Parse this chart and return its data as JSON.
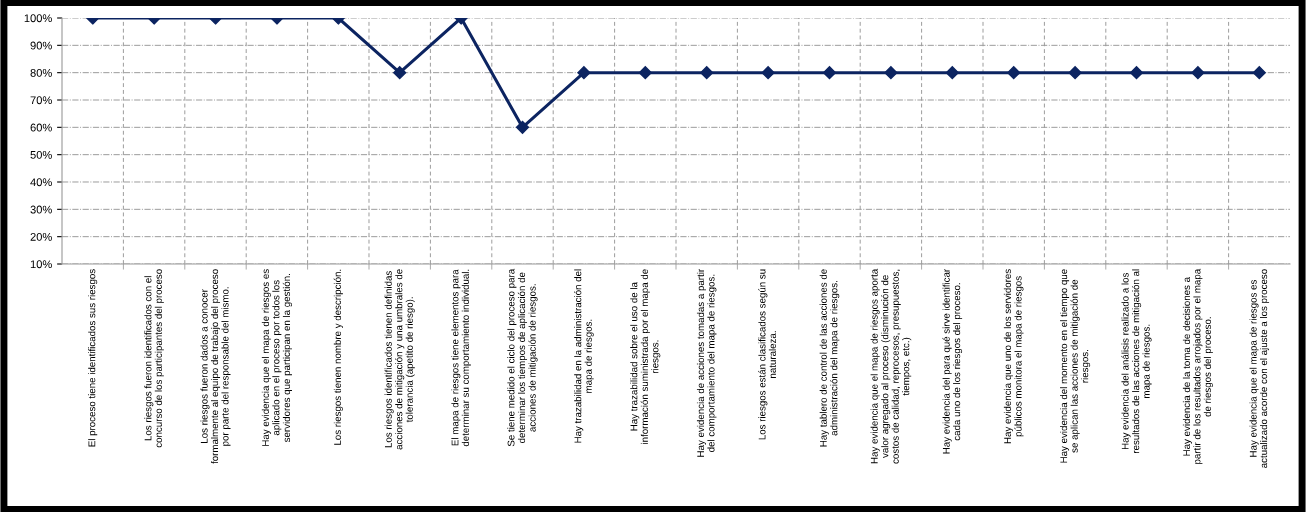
{
  "chart_data": {
    "type": "line",
    "categories": [
      "El proceso tiene identificados sus riesgos",
      "Los riesgos fueron identificados con el\nconcurso de los participantes del proceso",
      "Los riesgos fueron dados a conocer\nformalmente al equipo de trabajo del proceso\npor parte del responsable del mismo.",
      "Hay evidencia que el mapa de riesgos es\naplicado en el proceso por todos los\nservidores que participan en la gestión.",
      "Los riesgos tienen nombre y descripción.",
      "Los riesgos identificados tienen definidas\nacciones de mitigación y una umbrales de\ntolerancia (apetito de riesgo).",
      "El mapa de riesgos tiene elementos para\ndeterminar su comportamiento individual.",
      "Se tiene medido el ciclo del proceso para\ndeterminar los tiempos de aplicación de\nacciones de mitigación de riesgos.",
      "Hay trazabilidad en la administración del\nmapa de riesgos.",
      "Hay trazabilidad sobre el uso de la\ninformación suministrada por el mapa de\nriesgos.",
      "Hay evidencia de acciones tomadas a partir\ndel comportamiento del mapa de riesgos.",
      "Los riesgos están clasificados según su\nnaturaleza.",
      "Hay tablero de control de las acciones de\nadministración del mapa de riesgos.",
      "Hay evidencia que el mapa de riesgos aporta\nvalor agregado al proceso (disminución de\ncostos de calidad, reprocesos, presupuestos,\ntiempos, etc.)",
      "Hay evidencia del para qué sirve identificar\ncada uno de los riesgos del proceso.",
      "Hay evidencia que uno de los servidores\npúblicos monitora el mapa de riesgos",
      "Hay evidencia del momento en el tiempo que\nse aplican las acciones de mitigación de\nriesgos.",
      "Hay evidencia del análisis realizado a los\nresultados de las acciones de mitigación al\nmapa de riesgos.",
      "Hay evidencia de la toma de decisiones a\npartir de los resultados arrojados por el mapa\nde riesgos del proceso.",
      "Hay evidencia que el mapa de riesgos es\nactualizado acorde con el ajuste a los proceso"
    ],
    "series": [
      {
        "color": "#0c2461",
        "values": [
          100,
          100,
          100,
          100,
          100,
          80,
          100,
          60,
          80,
          80,
          80,
          80,
          80,
          80,
          80,
          80,
          80,
          80,
          80,
          80
        ]
      }
    ],
    "ylim": [
      10,
      100
    ],
    "yticks": [
      {
        "value": 10,
        "label": "10%"
      },
      {
        "value": 20,
        "label": "20%"
      },
      {
        "value": 30,
        "label": "30%"
      },
      {
        "value": 40,
        "label": "40%"
      },
      {
        "value": 50,
        "label": "50%"
      },
      {
        "value": 60,
        "label": "60%"
      },
      {
        "value": 70,
        "label": "70%"
      },
      {
        "value": 80,
        "label": "80%"
      },
      {
        "value": 90,
        "label": "90%"
      },
      {
        "value": 100,
        "label": "100%"
      }
    ],
    "grid": true,
    "marker": "diamond",
    "line_style": "solid",
    "legend": false
  }
}
